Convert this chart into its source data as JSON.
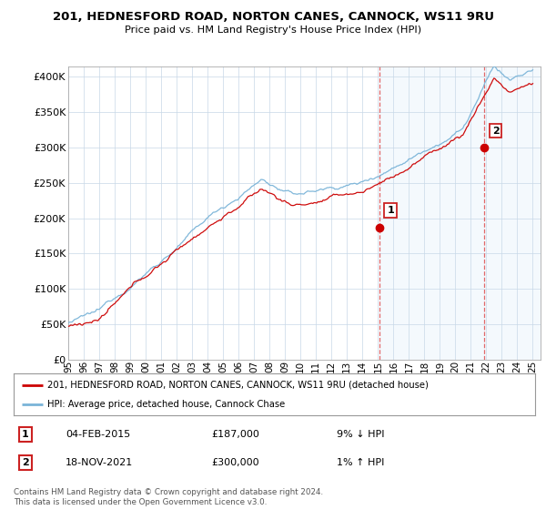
{
  "title_line1": "201, HEDNESFORD ROAD, NORTON CANES, CANNOCK, WS11 9RU",
  "title_line2": "Price paid vs. HM Land Registry's House Price Index (HPI)",
  "ylabel_ticks": [
    "£0",
    "£50K",
    "£100K",
    "£150K",
    "£200K",
    "£250K",
    "£300K",
    "£350K",
    "£400K"
  ],
  "ytick_values": [
    0,
    50000,
    100000,
    150000,
    200000,
    250000,
    300000,
    350000,
    400000
  ],
  "ylim": [
    0,
    415000
  ],
  "xlim_start": 1995.0,
  "xlim_end": 2025.5,
  "hpi_color": "#7ab4d8",
  "price_color": "#cc0000",
  "sale1_x": 2015.08,
  "sale1_y": 187000,
  "sale2_x": 2021.88,
  "sale2_y": 300000,
  "shade_start": 2015.08,
  "legend_line1": "201, HEDNESFORD ROAD, NORTON CANES, CANNOCK, WS11 9RU (detached house)",
  "legend_line2": "HPI: Average price, detached house, Cannock Chase",
  "note1_label": "1",
  "note1_date": "04-FEB-2015",
  "note1_price": "£187,000",
  "note1_hpi": "9% ↓ HPI",
  "note2_label": "2",
  "note2_date": "18-NOV-2021",
  "note2_price": "£300,000",
  "note2_hpi": "1% ↑ HPI",
  "footer": "Contains HM Land Registry data © Crown copyright and database right 2024.\nThis data is licensed under the Open Government Licence v3.0."
}
